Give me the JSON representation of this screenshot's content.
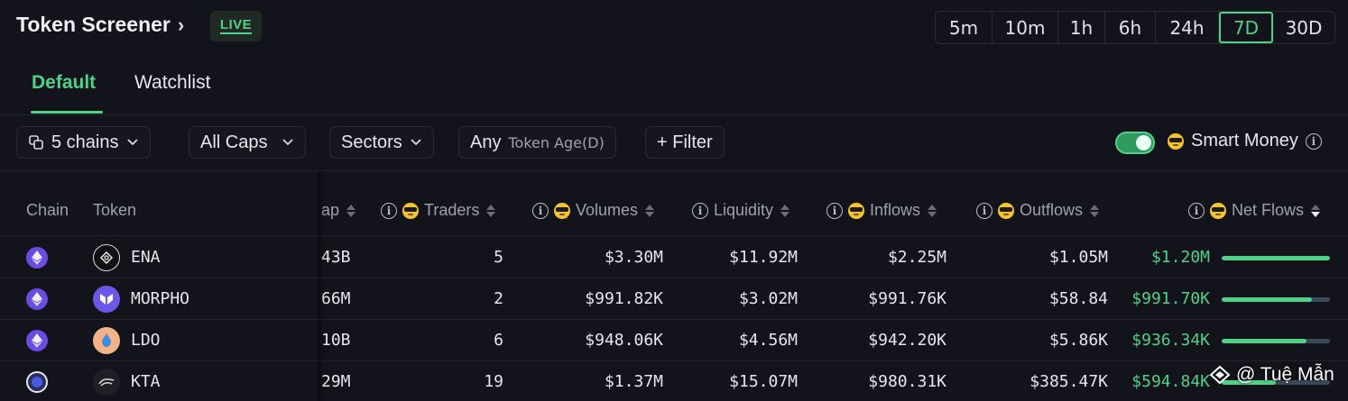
{
  "header": {
    "title": "Token Screener",
    "live_badge": "LIVE"
  },
  "timeframes": {
    "options": [
      "5m",
      "10m",
      "1h",
      "6h",
      "24h",
      "7D",
      "30D"
    ],
    "selected": "7D"
  },
  "tabs": [
    {
      "label": "Default",
      "active": true
    },
    {
      "label": "Watchlist",
      "active": false
    }
  ],
  "filters": {
    "chains": "5 chains",
    "caps": "All Caps",
    "sectors": "Sectors",
    "age_prefix": "Any",
    "age_label": "Token Age(D)",
    "filter": "+ Filter"
  },
  "smart_money": {
    "label": "Smart Money",
    "enabled": true
  },
  "columns": {
    "chain": "Chain",
    "token": "Token",
    "cap": "ap",
    "traders": "Traders",
    "volumes": "Volumes",
    "liquidity": "Liquidity",
    "inflows": "Inflows",
    "outflows": "Outflows",
    "net_flows": "Net Flows"
  },
  "rows": [
    {
      "token": "ENA",
      "cap": "43B",
      "traders": "5",
      "volumes": "$3.30M",
      "liquidity": "$11.92M",
      "inflows": "$2.25M",
      "outflows": "$1.05M",
      "net_flows": "$1.20M",
      "net_bar": 1.0
    },
    {
      "token": "MORPHO",
      "cap": "66M",
      "traders": "2",
      "volumes": "$991.82K",
      "liquidity": "$3.02M",
      "inflows": "$991.76K",
      "outflows": "$58.84",
      "net_flows": "$991.70K",
      "net_bar": 0.83
    },
    {
      "token": "LDO",
      "cap": "10B",
      "traders": "6",
      "volumes": "$948.06K",
      "liquidity": "$4.56M",
      "inflows": "$942.20K",
      "outflows": "$5.86K",
      "net_flows": "$936.34K",
      "net_bar": 0.78
    },
    {
      "token": "KTA",
      "cap": "29M",
      "traders": "19",
      "volumes": "$1.37M",
      "liquidity": "$15.07M",
      "inflows": "$980.31K",
      "outflows": "$385.47K",
      "net_flows": "$594.84K",
      "net_bar": 0.5
    }
  ],
  "watermark": "@ Tuệ Mẫn",
  "colors": {
    "accent": "#4fd189",
    "background": "#13141b",
    "chain_eth": "#6c4ce0"
  }
}
